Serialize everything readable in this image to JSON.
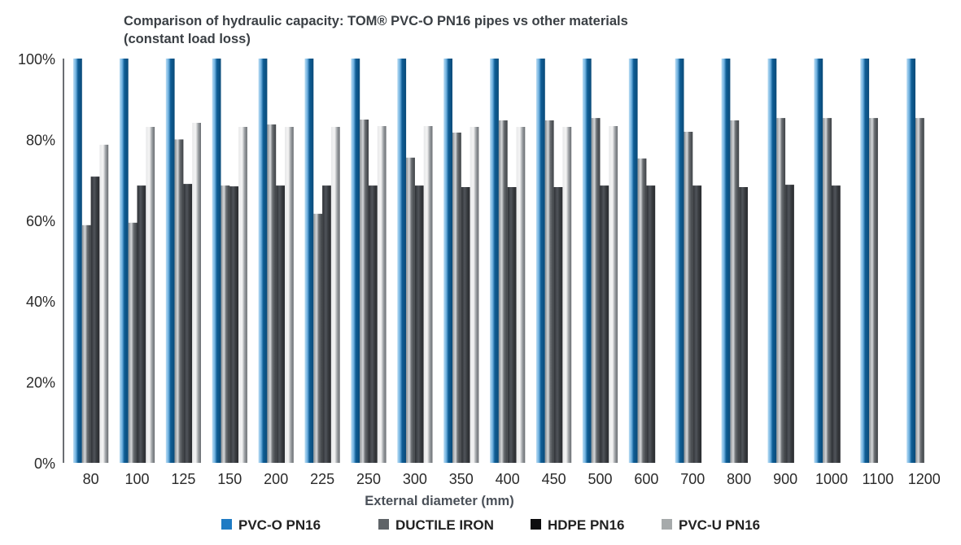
{
  "chart_data": {
    "type": "bar",
    "title": "Comparison of hydraulic capacity: TOM® PVC-O PN16 pipes vs other materials",
    "subtitle": "(constant load loss)",
    "xlabel": "External diameter (mm)",
    "ylabel": "",
    "ylim": [
      0,
      100
    ],
    "yticks": [
      "0%",
      "20%",
      "40%",
      "60%",
      "80%",
      "100%"
    ],
    "ytick_values": [
      0,
      20,
      40,
      60,
      80,
      100
    ],
    "grid": false,
    "legend_position": "bottom",
    "categories": [
      "80",
      "100",
      "125",
      "150",
      "200",
      "225",
      "250",
      "300",
      "350",
      "400",
      "450",
      "500",
      "600",
      "700",
      "800",
      "900",
      "1000",
      "1100",
      "1200"
    ],
    "series": [
      {
        "name": "PVC-O PN16",
        "color": "#1f7bc4",
        "values": [
          100,
          100,
          100,
          100,
          100,
          100,
          100,
          100,
          100,
          100,
          100,
          100,
          100,
          100,
          100,
          100,
          100,
          100,
          100
        ]
      },
      {
        "name": "DUCTILE IRON",
        "color": "#5f6468",
        "values": [
          58.8,
          59.4,
          80.0,
          68.6,
          83.7,
          61.6,
          84.9,
          75.5,
          81.7,
          84.7,
          84.7,
          85.3,
          75.3,
          81.9,
          84.7,
          85.3,
          85.3,
          85.3,
          85.3
        ]
      },
      {
        "name": "HDPE PN16",
        "color": "#0d0d0f",
        "values": [
          70.8,
          68.6,
          69.0,
          68.4,
          68.6,
          68.6,
          68.6,
          68.6,
          68.2,
          68.2,
          68.2,
          68.6,
          68.6,
          68.6,
          68.2,
          68.8,
          68.6,
          null,
          null
        ]
      },
      {
        "name": "PVC-U PN16",
        "color": "#a6aaab",
        "values": [
          78.7,
          83.1,
          84.1,
          83.1,
          83.1,
          83.1,
          83.3,
          83.3,
          83.1,
          83.1,
          83.1,
          83.3,
          null,
          null,
          null,
          null,
          null,
          null,
          null
        ]
      }
    ]
  }
}
